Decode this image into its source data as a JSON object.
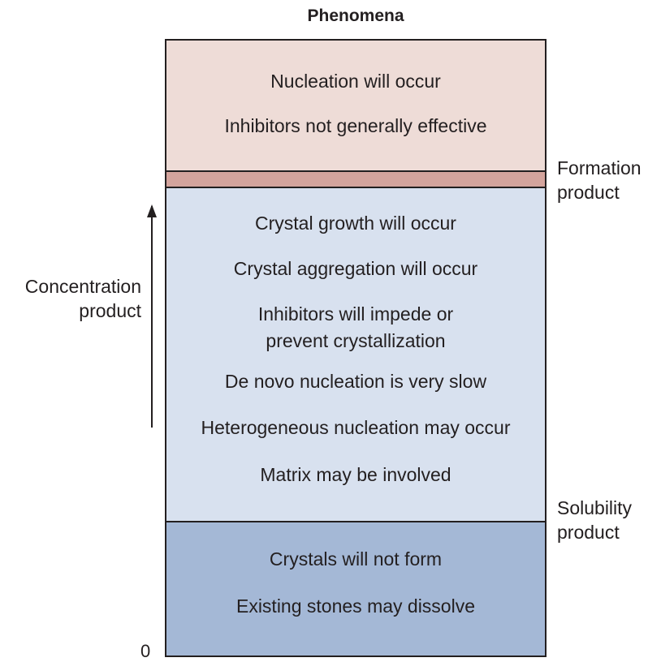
{
  "title": "Phenomena",
  "zones": {
    "top": [
      "Nucleation will occur",
      "Inhibitors not generally effective"
    ],
    "middle": [
      "Crystal growth will occur",
      "Crystal aggregation will occur",
      "Inhibitors will impede or",
      "prevent crystallization",
      "De novo nucleation is very slow",
      "Heterogeneous nucleation may occur",
      "Matrix may be involved"
    ],
    "bottom": [
      "Crystals will not form",
      "Existing stones may dissolve"
    ]
  },
  "labels": {
    "formation": [
      "Formation",
      "product"
    ],
    "solubility": [
      "Solubility",
      "product"
    ],
    "concentration": [
      "Concentration",
      "product"
    ],
    "zero": "0"
  },
  "colors": {
    "top_zone": "#eedcd7",
    "formation_band": "#d4a49d",
    "middle_zone": "#d8e1ef",
    "bottom_zone": "#a4b8d6",
    "ink": "#231f20"
  }
}
